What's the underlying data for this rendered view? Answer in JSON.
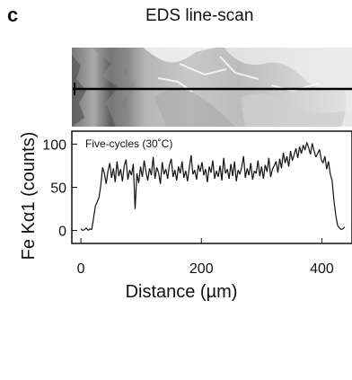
{
  "panel": {
    "letter": "c",
    "title": "EDS line-scan"
  },
  "colors": {
    "line": "#111111",
    "frame": "#111111",
    "sem_dark": "#6b6b6b",
    "sem_light": "#d9d9d9",
    "scanline": "#000000"
  },
  "chart_data": {
    "type": "line",
    "title": "",
    "annotation": "Five-cycles (30˚C)",
    "xlabel": "Distance (µm)",
    "ylabel": "Fe Kα1 (counts)",
    "xlim": [
      -15,
      450
    ],
    "ylim": [
      -15,
      115
    ],
    "xticks": [
      0,
      200,
      400
    ],
    "yticks": [
      0,
      50,
      100
    ],
    "grid": false,
    "legend": "none",
    "x": [
      0,
      3,
      6,
      9,
      12,
      15,
      18,
      21,
      24,
      27,
      30,
      33,
      36,
      39,
      42,
      45,
      48,
      51,
      54,
      57,
      60,
      63,
      66,
      69,
      72,
      75,
      78,
      81,
      84,
      87,
      90,
      93,
      96,
      99,
      102,
      105,
      108,
      111,
      114,
      117,
      120,
      123,
      126,
      129,
      132,
      135,
      138,
      141,
      144,
      147,
      150,
      153,
      156,
      159,
      162,
      165,
      168,
      171,
      174,
      177,
      180,
      183,
      186,
      189,
      192,
      195,
      198,
      201,
      204,
      207,
      210,
      213,
      216,
      219,
      222,
      225,
      228,
      231,
      234,
      237,
      240,
      243,
      246,
      249,
      252,
      255,
      258,
      261,
      264,
      267,
      270,
      273,
      276,
      279,
      282,
      285,
      288,
      291,
      294,
      297,
      300,
      303,
      306,
      309,
      312,
      315,
      318,
      321,
      324,
      327,
      330,
      333,
      336,
      339,
      342,
      345,
      348,
      351,
      354,
      357,
      360,
      363,
      366,
      369,
      372,
      375,
      378,
      381,
      384,
      387,
      390,
      393,
      396,
      399,
      402,
      405,
      408,
      411,
      414,
      417,
      420,
      423,
      426,
      429,
      432,
      435,
      438
    ],
    "values": [
      2,
      0,
      1,
      3,
      0,
      2,
      1,
      14,
      28,
      33,
      38,
      52,
      73,
      66,
      54,
      69,
      78,
      61,
      72,
      56,
      80,
      63,
      71,
      57,
      75,
      82,
      59,
      70,
      64,
      77,
      25,
      66,
      55,
      74,
      62,
      81,
      68,
      58,
      72,
      64,
      85,
      60,
      73,
      67,
      54,
      79,
      65,
      71,
      60,
      76,
      83,
      62,
      70,
      58,
      74,
      66,
      80,
      61,
      69,
      57,
      73,
      87,
      65,
      70,
      59,
      76,
      68,
      79,
      64,
      71,
      56,
      74,
      67,
      81,
      60,
      69,
      62,
      75,
      58,
      84,
      66,
      71,
      60,
      77,
      63,
      80,
      57,
      70,
      65,
      74,
      86,
      61,
      72,
      64,
      78,
      59,
      69,
      66,
      81,
      63,
      74,
      60,
      76,
      68,
      84,
      62,
      71,
      75,
      80,
      67,
      83,
      72,
      90,
      78,
      86,
      74,
      92,
      81,
      88,
      95,
      84,
      97,
      89,
      99,
      93,
      102,
      96,
      88,
      101,
      92,
      85,
      89,
      94,
      82,
      78,
      86,
      71,
      80,
      65,
      58,
      35,
      18,
      6,
      3,
      1,
      2,
      4
    ],
    "series": [
      {
        "values_ref": "values"
      }
    ]
  }
}
